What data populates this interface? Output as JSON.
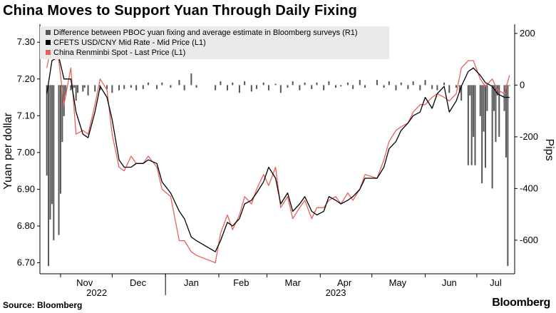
{
  "title": "China Moves to Support Yuan Through Daily Fixing",
  "source": "Source: Bloomberg",
  "brand": "Bloomberg",
  "colors": {
    "fix_line": "#000000",
    "spot_line": "#e8605a",
    "diff_bars": "#555555",
    "legend_bg": "#e9e9e9"
  },
  "chart_data": {
    "type": "line",
    "grid": false,
    "legend_placement": "top-left",
    "ylabel_left": "Yuan per dollar",
    "ylabel_right": "Pips",
    "ylim_left": [
      6.67,
      7.345
    ],
    "ylim_right": [
      -730,
      230
    ],
    "yticks_left": [
      "7.30",
      "7.20",
      "7.10",
      "7.00",
      "6.90",
      "6.80",
      "6.70"
    ],
    "yticks_right": [
      "200",
      "0",
      "-200",
      "-400",
      "-600"
    ],
    "month_labels": [
      "Nov",
      "Dec",
      "Jan",
      "Feb",
      "Mar",
      "Apr",
      "May",
      "Jun",
      "Jul"
    ],
    "year_labels": [
      "2022",
      "2023"
    ],
    "series": [
      {
        "name": "Difference between PBOC yuan fixing and average estimate in Bloomberg surveys (R1)",
        "axis": "right",
        "kind": "bar",
        "x": [
          "2022-10-24",
          "2022-10-25",
          "2022-10-26",
          "2022-10-27",
          "2022-10-28",
          "2022-10-31",
          "2022-11-01",
          "2022-11-02",
          "2022-11-03",
          "2022-11-04",
          "2022-11-07",
          "2022-11-08",
          "2022-11-09",
          "2022-11-10",
          "2022-11-11",
          "2022-11-14",
          "2022-11-15",
          "2022-11-17",
          "2022-11-21",
          "2022-11-24",
          "2022-11-28",
          "2022-12-01",
          "2022-12-05",
          "2022-12-08",
          "2022-12-12",
          "2022-12-15",
          "2022-12-19",
          "2022-12-22",
          "2022-12-27",
          "2022-12-30",
          "2023-01-04",
          "2023-01-09",
          "2023-01-12",
          "2023-01-16",
          "2023-01-19",
          "2023-01-30",
          "2023-02-02",
          "2023-02-06",
          "2023-02-09",
          "2023-02-13",
          "2023-02-16",
          "2023-02-20",
          "2023-02-23",
          "2023-02-27",
          "2023-03-02",
          "2023-03-06",
          "2023-03-09",
          "2023-03-13",
          "2023-03-16",
          "2023-03-20",
          "2023-03-23",
          "2023-03-27",
          "2023-03-30",
          "2023-04-03",
          "2023-04-06",
          "2023-04-10",
          "2023-04-13",
          "2023-04-17",
          "2023-04-20",
          "2023-04-24",
          "2023-04-27",
          "2023-05-04",
          "2023-05-08",
          "2023-05-11",
          "2023-05-15",
          "2023-05-18",
          "2023-05-22",
          "2023-05-25",
          "2023-05-29",
          "2023-06-01",
          "2023-06-05",
          "2023-06-08",
          "2023-06-12",
          "2023-06-15",
          "2023-06-19",
          "2023-06-21",
          "2023-06-22",
          "2023-06-26",
          "2023-06-27",
          "2023-06-28",
          "2023-06-29",
          "2023-06-30",
          "2023-07-03",
          "2023-07-04",
          "2023-07-05",
          "2023-07-06",
          "2023-07-07",
          "2023-07-10",
          "2023-07-11",
          "2023-07-12",
          "2023-07-13",
          "2023-07-14",
          "2023-07-17",
          "2023-07-18",
          "2023-07-19",
          "2023-07-20"
        ],
        "values": [
          -350,
          -700,
          -520,
          -460,
          -600,
          -580,
          -420,
          -220,
          -120,
          -40,
          -20,
          -15,
          -10,
          -60,
          -30,
          -25,
          -10,
          -40,
          -25,
          -20,
          -15,
          -30,
          -20,
          -15,
          -10,
          -20,
          -15,
          10,
          -15,
          10,
          -10,
          20,
          -20,
          45,
          -10,
          -20,
          15,
          -20,
          10,
          -30,
          15,
          -25,
          -15,
          10,
          -20,
          5,
          -30,
          -10,
          15,
          -20,
          10,
          -15,
          10,
          -20,
          15,
          -10,
          -5,
          10,
          -15,
          20,
          -10,
          20,
          -10,
          15,
          -20,
          10,
          -15,
          15,
          -20,
          20,
          -15,
          -20,
          10,
          -30,
          -10,
          -30,
          -60,
          -310,
          -40,
          -310,
          -200,
          -310,
          -120,
          -380,
          -180,
          -320,
          -100,
          -400,
          -100,
          -220,
          -40,
          -200,
          -100,
          -280,
          -700,
          0
        ]
      },
      {
        "name": "CFETS USD/CNY Mid Rate - Mid Price (L1)",
        "axis": "left",
        "kind": "line",
        "x": [
          "2022-10-24",
          "2022-10-27",
          "2022-10-31",
          "2022-11-03",
          "2022-11-07",
          "2022-11-10",
          "2022-11-14",
          "2022-11-17",
          "2022-11-21",
          "2022-11-24",
          "2022-11-28",
          "2022-12-01",
          "2022-12-05",
          "2022-12-08",
          "2022-12-12",
          "2022-12-15",
          "2022-12-19",
          "2022-12-22",
          "2022-12-27",
          "2022-12-30",
          "2023-01-04",
          "2023-01-09",
          "2023-01-12",
          "2023-01-16",
          "2023-01-19",
          "2023-01-30",
          "2023-02-02",
          "2023-02-06",
          "2023-02-09",
          "2023-02-13",
          "2023-02-16",
          "2023-02-20",
          "2023-02-23",
          "2023-02-27",
          "2023-03-02",
          "2023-03-06",
          "2023-03-09",
          "2023-03-13",
          "2023-03-16",
          "2023-03-20",
          "2023-03-23",
          "2023-03-27",
          "2023-03-30",
          "2023-04-03",
          "2023-04-06",
          "2023-04-10",
          "2023-04-13",
          "2023-04-17",
          "2023-04-20",
          "2023-04-24",
          "2023-04-27",
          "2023-05-04",
          "2023-05-08",
          "2023-05-11",
          "2023-05-15",
          "2023-05-18",
          "2023-05-22",
          "2023-05-25",
          "2023-05-29",
          "2023-06-01",
          "2023-06-05",
          "2023-06-08",
          "2023-06-12",
          "2023-06-15",
          "2023-06-19",
          "2023-06-22",
          "2023-06-26",
          "2023-06-29",
          "2023-07-03",
          "2023-07-06",
          "2023-07-10",
          "2023-07-13",
          "2023-07-17",
          "2023-07-20"
        ],
        "values": [
          7.16,
          7.25,
          7.26,
          7.2,
          7.2,
          7.11,
          7.05,
          7.04,
          7.11,
          7.18,
          7.15,
          7.09,
          6.98,
          6.96,
          6.96,
          6.97,
          6.97,
          6.98,
          6.97,
          6.92,
          6.89,
          6.84,
          6.82,
          6.77,
          6.76,
          6.73,
          6.76,
          6.81,
          6.8,
          6.82,
          6.86,
          6.87,
          6.89,
          6.92,
          6.96,
          6.93,
          6.86,
          6.89,
          6.84,
          6.86,
          6.88,
          6.84,
          6.83,
          6.84,
          6.88,
          6.87,
          6.86,
          6.87,
          6.88,
          6.9,
          6.93,
          6.93,
          6.96,
          7.01,
          7.03,
          7.06,
          7.08,
          7.1,
          7.11,
          7.15,
          7.12,
          7.16,
          7.18,
          7.11,
          7.14,
          7.18,
          7.22,
          7.23,
          7.21,
          7.19,
          7.18,
          7.16,
          7.15,
          7.15
        ]
      },
      {
        "name": "China Renminbi Spot - Last Price (L1)",
        "axis": "left",
        "kind": "line",
        "x": [
          "2022-10-24",
          "2022-10-27",
          "2022-10-31",
          "2022-11-03",
          "2022-11-07",
          "2022-11-10",
          "2022-11-14",
          "2022-11-17",
          "2022-11-21",
          "2022-11-24",
          "2022-11-28",
          "2022-12-01",
          "2022-12-05",
          "2022-12-08",
          "2022-12-12",
          "2022-12-15",
          "2022-12-19",
          "2022-12-22",
          "2022-12-27",
          "2022-12-30",
          "2023-01-04",
          "2023-01-09",
          "2023-01-12",
          "2023-01-16",
          "2023-01-19",
          "2023-01-30",
          "2023-02-02",
          "2023-02-06",
          "2023-02-09",
          "2023-02-13",
          "2023-02-16",
          "2023-02-20",
          "2023-02-23",
          "2023-02-27",
          "2023-03-02",
          "2023-03-06",
          "2023-03-09",
          "2023-03-13",
          "2023-03-16",
          "2023-03-20",
          "2023-03-23",
          "2023-03-27",
          "2023-03-30",
          "2023-04-03",
          "2023-04-06",
          "2023-04-10",
          "2023-04-13",
          "2023-04-17",
          "2023-04-20",
          "2023-04-24",
          "2023-04-27",
          "2023-05-04",
          "2023-05-08",
          "2023-05-11",
          "2023-05-15",
          "2023-05-18",
          "2023-05-22",
          "2023-05-25",
          "2023-05-29",
          "2023-06-01",
          "2023-06-05",
          "2023-06-08",
          "2023-06-12",
          "2023-06-15",
          "2023-06-19",
          "2023-06-22",
          "2023-06-26",
          "2023-06-29",
          "2023-07-03",
          "2023-07-06",
          "2023-07-10",
          "2023-07-13",
          "2023-07-17",
          "2023-07-20"
        ],
        "values": [
          7.23,
          7.3,
          7.25,
          7.13,
          7.23,
          7.05,
          7.06,
          7.05,
          7.13,
          7.2,
          7.17,
          7.05,
          6.96,
          6.95,
          6.99,
          6.97,
          6.97,
          6.99,
          6.96,
          6.9,
          6.88,
          6.76,
          6.76,
          6.73,
          6.72,
          6.7,
          6.78,
          6.83,
          6.79,
          6.83,
          6.88,
          6.86,
          6.9,
          6.94,
          6.91,
          6.96,
          6.85,
          6.88,
          6.82,
          6.85,
          6.87,
          6.82,
          6.85,
          6.85,
          6.87,
          6.88,
          6.86,
          6.89,
          6.87,
          6.9,
          6.94,
          6.93,
          6.98,
          7.03,
          7.06,
          7.07,
          7.08,
          7.11,
          7.13,
          7.13,
          7.15,
          7.16,
          7.15,
          7.14,
          7.16,
          7.23,
          7.25,
          7.25,
          7.2,
          7.18,
          7.2,
          7.17,
          7.16,
          7.21
        ]
      }
    ]
  }
}
